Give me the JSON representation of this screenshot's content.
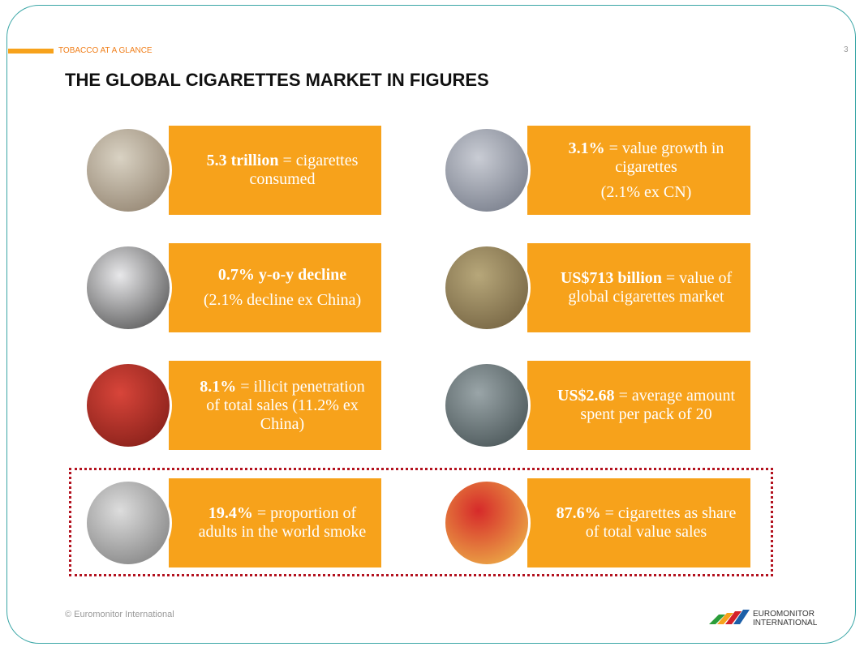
{
  "header": {
    "section": "TOBACCO AT A GLANCE",
    "page_number": "3",
    "title": "THE GLOBAL CIGARETTES MARKET IN FIGURES"
  },
  "cards": [
    {
      "bold": "5.3 trillion",
      "text": "= cigarettes consumed"
    },
    {
      "bold": "3.1%",
      "text": "= value growth in cigarettes",
      "note": "(2.1% ex CN)"
    },
    {
      "bold": "0.7% y-o-y decline",
      "note": "(2.1% decline ex China)"
    },
    {
      "bold": "US$713 billion",
      "text": "= value of global cigarettes market"
    },
    {
      "bold": "8.1%",
      "text": "= illicit penetration of total sales (11.2% ex China)"
    },
    {
      "bold": "US$2.68",
      "text": "= average amount spent per pack of 20"
    },
    {
      "bold": "19.4%",
      "text": "= proportion of adults in the world smoke"
    },
    {
      "bold": "87.6%",
      "text": "= cigarettes as share of total value sales"
    }
  ],
  "footer": {
    "copyright": "© Euromonitor International",
    "logo_line1": "EUROMONITOR",
    "logo_line2": "INTERNATIONAL"
  }
}
